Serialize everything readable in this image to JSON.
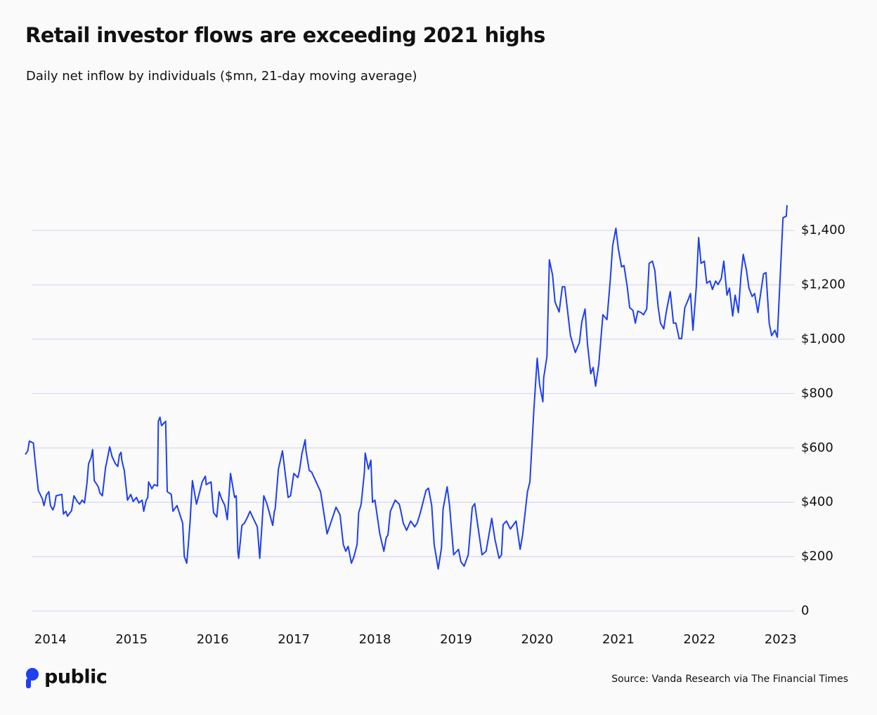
{
  "chart_data": {
    "type": "line",
    "title": "Retail investor flows are exceeding 2021 highs",
    "subtitle": "Daily net inflow by individuals ($mn, 21-day moving average)",
    "source": "Source: Vanda Research via The Financial Times",
    "color": "#1e3ff2",
    "grid": true,
    "xlim": [
      2013.69,
      2023.08
    ],
    "xticks": [
      2014,
      2015,
      2016,
      2017,
      2018,
      2019,
      2020,
      2021,
      2022,
      2023
    ],
    "ylim": [
      0,
      1500
    ],
    "yticks": [
      0,
      {
        "value": 200,
        "label": "$200"
      },
      {
        "value": 400,
        "label": "$400"
      },
      {
        "value": 600,
        "label": "$600"
      },
      {
        "value": 800,
        "label": "$800"
      },
      {
        "value": 1000,
        "label": "$1,000"
      },
      {
        "value": 1200,
        "label": "$1,200"
      },
      {
        "value": 1400,
        "label": "$1,400"
      }
    ],
    "x": [
      2013.69,
      2013.72,
      2013.74,
      2013.79,
      2013.81,
      2013.85,
      2013.9,
      2013.92,
      2013.95,
      2013.98,
      2014.0,
      2014.03,
      2014.05,
      2014.07,
      2014.14,
      2014.16,
      2014.19,
      2014.21,
      2014.26,
      2014.29,
      2014.33,
      2014.36,
      2014.39,
      2014.42,
      2014.45,
      2014.47,
      2014.5,
      2014.52,
      2014.54,
      2014.59,
      2014.61,
      2014.64,
      2014.68,
      2014.69,
      2014.73,
      2014.76,
      2014.8,
      2014.83,
      2014.85,
      2014.87,
      2014.88,
      2014.91,
      2014.95,
      2014.99,
      2015.02,
      2015.06,
      2015.09,
      2015.13,
      2015.15,
      2015.18,
      2015.2,
      2015.21,
      2015.25,
      2015.28,
      2015.32,
      2015.33,
      2015.35,
      2015.37,
      2015.42,
      2015.44,
      2015.49,
      2015.51,
      2015.56,
      2015.63,
      2015.65,
      2015.68,
      2015.7,
      2015.72,
      2015.75,
      2015.8,
      2015.84,
      2015.87,
      2015.91,
      2015.92,
      2015.98,
      2016.01,
      2016.05,
      2016.08,
      2016.11,
      2016.15,
      2016.18,
      2016.22,
      2016.27,
      2016.29,
      2016.31,
      2016.32,
      2016.36,
      2016.39,
      2016.43,
      2016.46,
      2016.5,
      2016.55,
      2016.58,
      2016.6,
      2016.63,
      2016.67,
      2016.74,
      2016.76,
      2016.77,
      2016.81,
      2016.86,
      2016.93,
      2016.96,
      2017.0,
      2017.05,
      2017.07,
      2017.1,
      2017.14,
      2017.15,
      2017.19,
      2017.22,
      2017.33,
      2017.41,
      2017.52,
      2017.57,
      2017.61,
      2017.64,
      2017.67,
      2017.71,
      2017.74,
      2017.78,
      2017.8,
      2017.83,
      2017.87,
      2017.88,
      2017.92,
      2017.95,
      2017.97,
      2018.0,
      2018.06,
      2018.11,
      2018.14,
      2018.16,
      2018.19,
      2018.25,
      2018.3,
      2018.32,
      2018.35,
      2018.39,
      2018.44,
      2018.49,
      2018.52,
      2018.56,
      2018.63,
      2018.66,
      2018.7,
      2018.73,
      2018.78,
      2018.82,
      2018.84,
      2018.89,
      2018.92,
      2018.97,
      2019.03,
      2019.06,
      2019.1,
      2019.15,
      2019.2,
      2019.23,
      2019.27,
      2019.32,
      2019.37,
      2019.44,
      2019.48,
      2019.53,
      2019.56,
      2019.58,
      2019.62,
      2019.67,
      2019.74,
      2019.79,
      2019.82,
      2019.88,
      2019.91,
      2019.96,
      2020.0,
      2020.03,
      2020.07,
      2020.08,
      2020.12,
      2020.15,
      2020.19,
      2020.22,
      2020.27,
      2020.31,
      2020.34,
      2020.41,
      2020.47,
      2020.52,
      2020.55,
      2020.59,
      2020.62,
      2020.66,
      2020.69,
      2020.72,
      2020.76,
      2020.81,
      2020.86,
      2020.9,
      2020.93,
      2020.97,
      2021.0,
      2021.04,
      2021.07,
      2021.11,
      2021.14,
      2021.18,
      2021.21,
      2021.24,
      2021.28,
      2021.31,
      2021.35,
      2021.38,
      2021.42,
      2021.45,
      2021.49,
      2021.52,
      2021.56,
      2021.59,
      2021.64,
      2021.68,
      2021.71,
      2021.75,
      2021.78,
      2021.82,
      2021.85,
      2021.89,
      2021.92,
      2021.96,
      2021.99,
      2022.02,
      2022.06,
      2022.09,
      2022.13,
      2022.16,
      2022.2,
      2022.23,
      2022.27,
      2022.3,
      2022.34,
      2022.37,
      2022.41,
      2022.44,
      2022.48,
      2022.51,
      2022.54,
      2022.58,
      2022.61,
      2022.65,
      2022.68,
      2022.72,
      2022.79,
      2022.82,
      2022.86,
      2022.89,
      2022.93,
      2022.96,
      2023.03,
      2023.07,
      2023.08
    ],
    "values": [
      576,
      589,
      625,
      618,
      555,
      444,
      413,
      388,
      426,
      439,
      388,
      372,
      388,
      424,
      429,
      357,
      367,
      349,
      369,
      424,
      403,
      393,
      408,
      398,
      470,
      542,
      563,
      594,
      480,
      457,
      434,
      424,
      530,
      542,
      604,
      568,
      542,
      532,
      574,
      584,
      555,
      517,
      408,
      429,
      403,
      418,
      398,
      408,
      367,
      408,
      418,
      475,
      450,
      465,
      460,
      698,
      713,
      682,
      698,
      439,
      429,
      367,
      388,
      323,
      201,
      176,
      245,
      323,
      480,
      393,
      439,
      475,
      496,
      465,
      475,
      362,
      346,
      439,
      413,
      388,
      336,
      506,
      418,
      424,
      220,
      194,
      315,
      323,
      346,
      367,
      341,
      310,
      194,
      284,
      424,
      393,
      315,
      367,
      375,
      522,
      589,
      418,
      424,
      506,
      491,
      517,
      579,
      630,
      589,
      517,
      511,
      439,
      284,
      382,
      354,
      245,
      220,
      238,
      176,
      199,
      245,
      362,
      393,
      511,
      581,
      522,
      555,
      400,
      408,
      284,
      220,
      271,
      279,
      367,
      408,
      393,
      367,
      323,
      297,
      331,
      310,
      323,
      362,
      444,
      452,
      388,
      245,
      155,
      232,
      375,
      457,
      388,
      207,
      227,
      181,
      165,
      207,
      382,
      395,
      310,
      207,
      220,
      341,
      263,
      194,
      207,
      318,
      331,
      302,
      331,
      227,
      279,
      439,
      475,
      744,
      930,
      832,
      770,
      858,
      935,
      1292,
      1235,
      1137,
      1100,
      1193,
      1193,
      1013,
      951,
      987,
      1064,
      1111,
      982,
      873,
      896,
      827,
      909,
      1090,
      1072,
      1214,
      1343,
      1408,
      1333,
      1266,
      1271,
      1193,
      1116,
      1106,
      1059,
      1103,
      1098,
      1090,
      1111,
      1279,
      1287,
      1253,
      1121,
      1059,
      1038,
      1098,
      1175,
      1059,
      1059,
      1002,
      1002,
      1116,
      1137,
      1168,
      1033,
      1188,
      1374,
      1279,
      1287,
      1206,
      1214,
      1183,
      1214,
      1201,
      1224,
      1287,
      1162,
      1188,
      1085,
      1162,
      1098,
      1227,
      1312,
      1253,
      1188,
      1157,
      1168,
      1098,
      1240,
      1245,
      1059,
      1013,
      1033,
      1007,
      1447,
      1452,
      1493
    ]
  },
  "brand": "public"
}
